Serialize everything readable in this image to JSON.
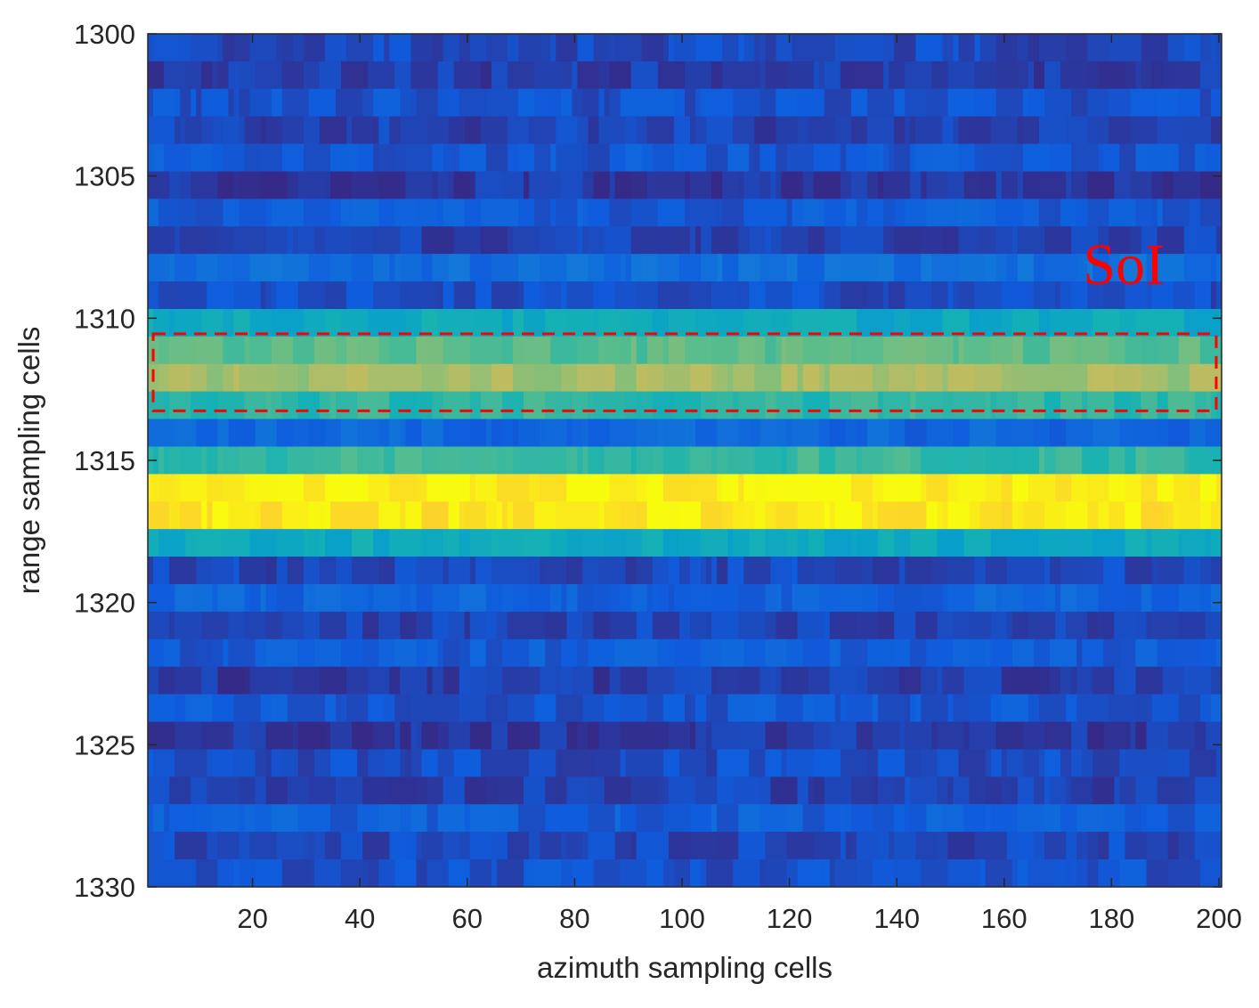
{
  "chart_data": {
    "type": "heatmap",
    "title": "",
    "xlabel": "azimuth sampling cells",
    "ylabel": "range sampling cells",
    "xlim": [
      1,
      200
    ],
    "ylim": [
      1300,
      1330
    ],
    "y_reversed": true,
    "x_ticks": [
      20,
      40,
      60,
      80,
      100,
      120,
      140,
      160,
      180,
      200
    ],
    "y_ticks": [
      1300,
      1305,
      1310,
      1315,
      1320,
      1325,
      1330
    ],
    "x_tick_labels": [
      "20",
      "40",
      "60",
      "80",
      "100",
      "120",
      "140",
      "160",
      "180",
      "200"
    ],
    "y_tick_labels": [
      "1300",
      "1305",
      "1310",
      "1315",
      "1320",
      "1325",
      "1330"
    ],
    "colormap": "parula",
    "grid": false,
    "colorbar": false,
    "row_intensity": [
      {
        "range_cell": 1300,
        "level": 0.06
      },
      {
        "range_cell": 1301,
        "level": 0.04
      },
      {
        "range_cell": 1302,
        "level": 0.08
      },
      {
        "range_cell": 1303,
        "level": 0.05
      },
      {
        "range_cell": 1304,
        "level": 0.09
      },
      {
        "range_cell": 1305,
        "level": 0.03
      },
      {
        "range_cell": 1306,
        "level": 0.1
      },
      {
        "range_cell": 1307,
        "level": 0.05
      },
      {
        "range_cell": 1308,
        "level": 0.15
      },
      {
        "range_cell": 1309,
        "level": 0.07
      },
      {
        "range_cell": 1310,
        "level": 0.36
      },
      {
        "range_cell": 1311,
        "level": 0.5
      },
      {
        "range_cell": 1312,
        "level": 0.6
      },
      {
        "range_cell": 1313,
        "level": 0.44
      },
      {
        "range_cell": 1314,
        "level": 0.13
      },
      {
        "range_cell": 1315,
        "level": 0.45
      },
      {
        "range_cell": 1316,
        "level": 0.88
      },
      {
        "range_cell": 1317,
        "level": 0.86
      },
      {
        "range_cell": 1318,
        "level": 0.36
      },
      {
        "range_cell": 1319,
        "level": 0.06
      },
      {
        "range_cell": 1320,
        "level": 0.12
      },
      {
        "range_cell": 1321,
        "level": 0.05
      },
      {
        "range_cell": 1322,
        "level": 0.1
      },
      {
        "range_cell": 1323,
        "level": 0.04
      },
      {
        "range_cell": 1324,
        "level": 0.09
      },
      {
        "range_cell": 1325,
        "level": 0.03
      },
      {
        "range_cell": 1326,
        "level": 0.07
      },
      {
        "range_cell": 1327,
        "level": 0.05
      },
      {
        "range_cell": 1328,
        "level": 0.11
      },
      {
        "range_cell": 1329,
        "level": 0.06
      },
      {
        "range_cell": 1330,
        "level": 0.08
      }
    ],
    "annotations": [
      {
        "text": "SoI",
        "color": "#ff0000",
        "box": {
          "x_start": 2,
          "x_end": 199,
          "y_start": 1310.4,
          "y_end": 1313.2,
          "style": "dashed",
          "color": "#ff0000"
        }
      }
    ]
  }
}
